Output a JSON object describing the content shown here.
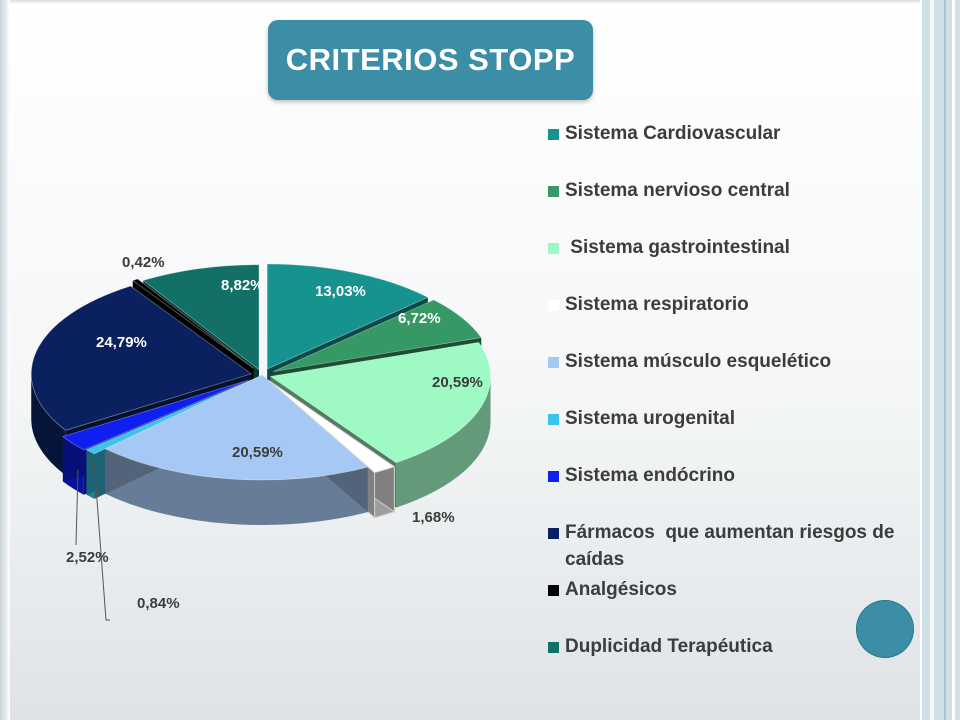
{
  "title": "CRITERIOS STOPP",
  "chart_data": {
    "type": "pie",
    "style": "3d-exploded",
    "legend_position": "right",
    "series": [
      {
        "name": "Sistema Cardiovascular",
        "value": 13.03,
        "label": "13,03%",
        "color": "#16928f"
      },
      {
        "name": "Sistema nervioso central",
        "value": 6.72,
        "label": "6,72%",
        "color": "#369965"
      },
      {
        "name": " Sistema gastrointestinal",
        "value": 20.59,
        "label": "20,59%",
        "color": "#9ff9c4"
      },
      {
        "name": "Sistema respiratorio",
        "value": 1.68,
        "label": "1,68%",
        "color": "#ffffff"
      },
      {
        "name": "Sistema músculo esquelético",
        "value": 20.59,
        "label": "20,59%",
        "color": "#a6c8f4"
      },
      {
        "name": "Sistema urogenital",
        "value": 0.84,
        "label": "0,84%",
        "color": "#3cc3ec"
      },
      {
        "name": "Sistema endócrino",
        "value": 2.52,
        "label": "2,52%",
        "color": "#0f1ff0"
      },
      {
        "name": "Fármacos  que aumentan riesgos de caídas",
        "value": 24.79,
        "label": "24,79%",
        "color": "#0b205e"
      },
      {
        "name": "Analgésicos",
        "value": 0.42,
        "label": "0,42%",
        "color": "#000000"
      },
      {
        "name": "Duplicidad Terapéutica",
        "value": 8.82,
        "label": "8,82%",
        "color": "#127066"
      }
    ]
  }
}
